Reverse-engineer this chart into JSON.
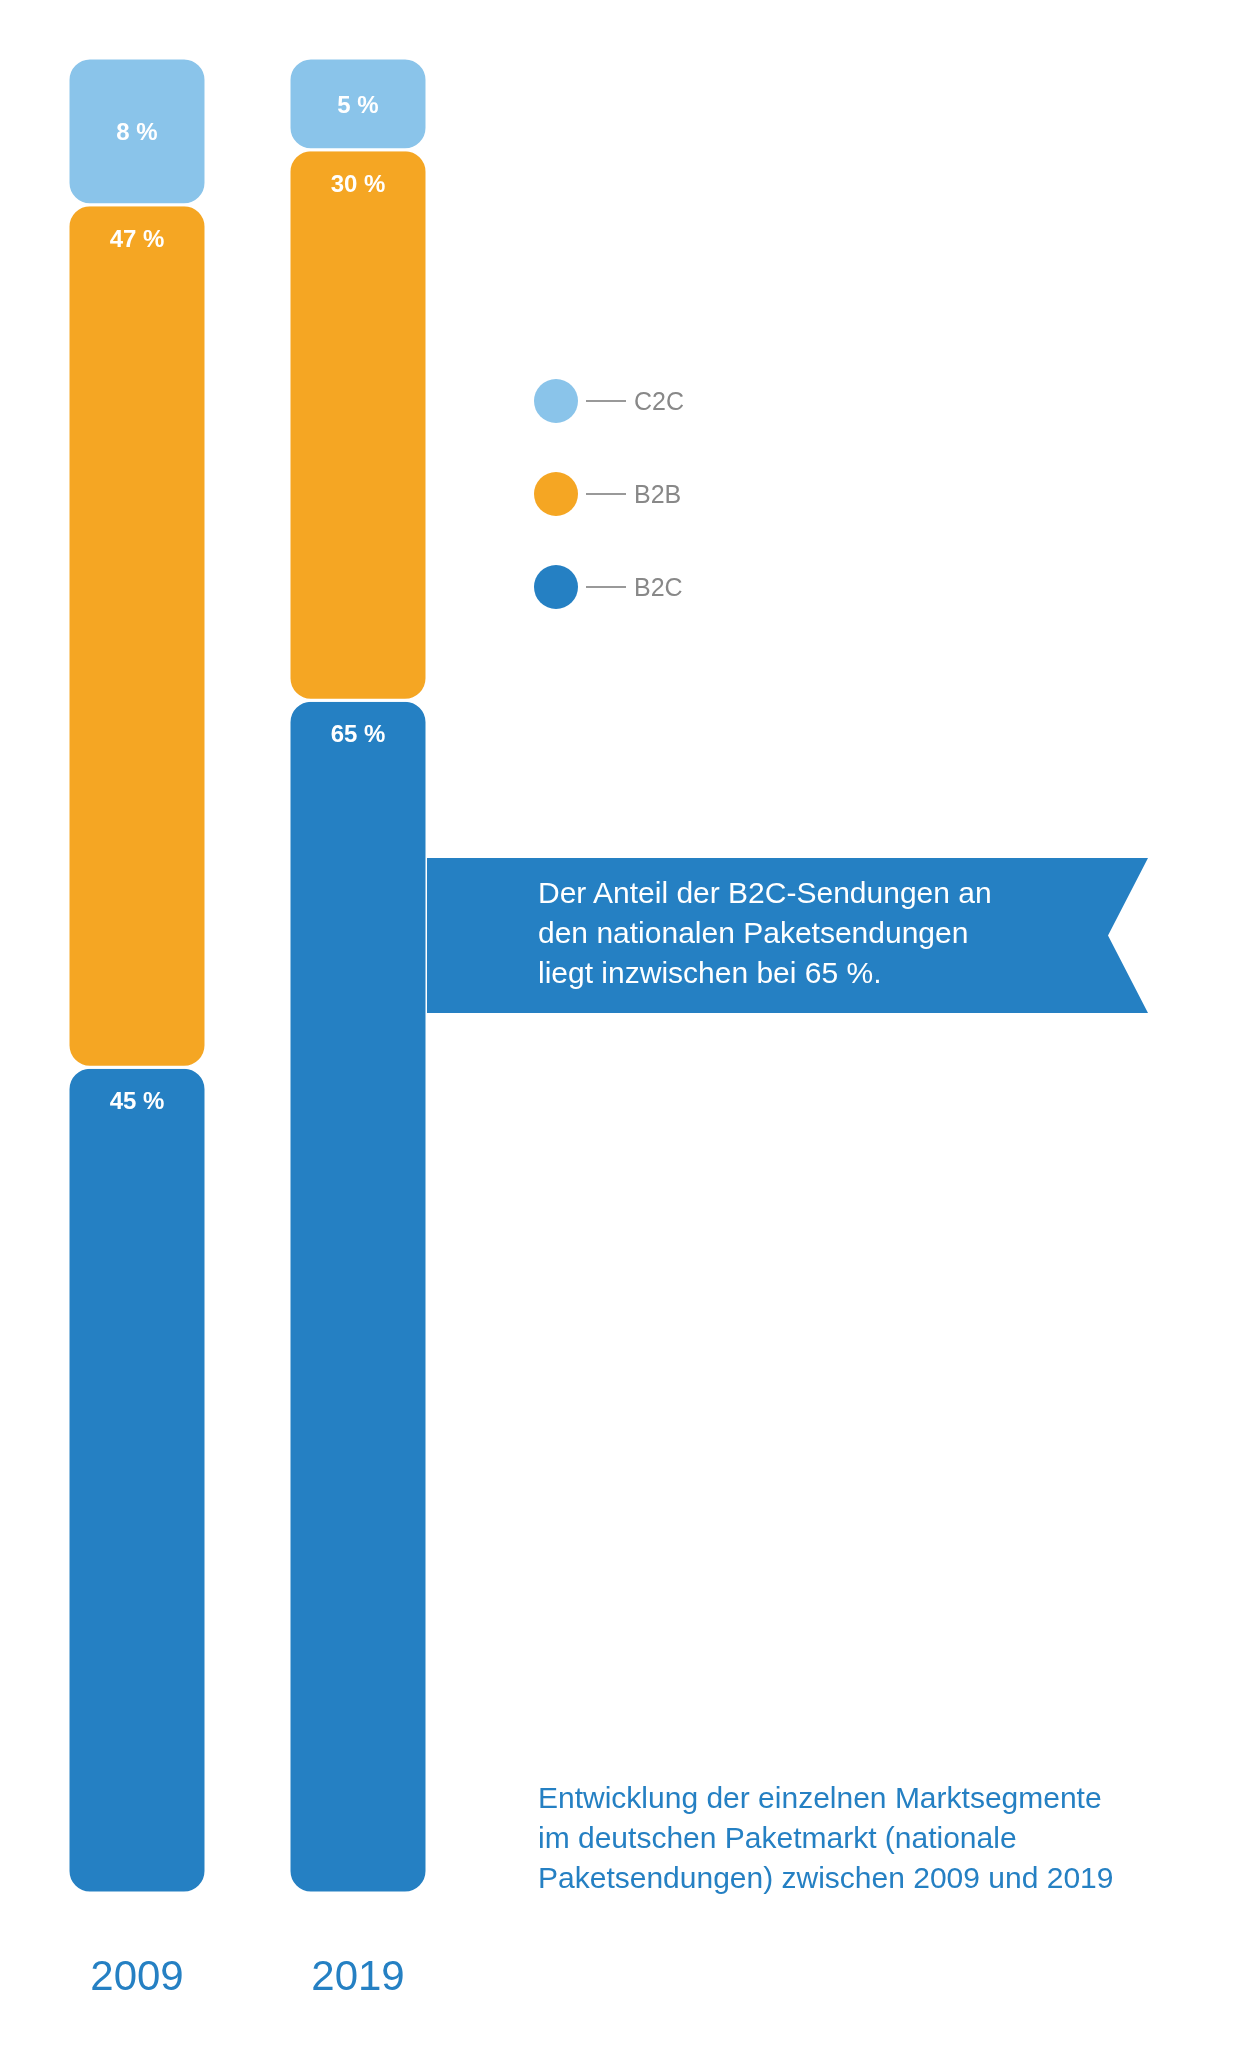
{
  "chart_data": {
    "type": "bar",
    "stacked": true,
    "categories": [
      "2009",
      "2019"
    ],
    "series": [
      {
        "name": "B2C",
        "color": "#2580c3",
        "values": [
          45,
          65
        ],
        "value_labels": [
          "45 %",
          "65 %"
        ]
      },
      {
        "name": "B2B",
        "color": "#f5a623",
        "values": [
          47,
          30
        ],
        "value_labels": [
          "47 %",
          "30 %"
        ]
      },
      {
        "name": "C2C",
        "color": "#8ac4ea",
        "values": [
          8,
          5
        ],
        "value_labels": [
          "8 %",
          "5 %"
        ]
      }
    ],
    "ylim": [
      0,
      100
    ],
    "tick_labels": "x",
    "legend": "right",
    "annotations": [
      "Der Anteil der B2C-Sendungen an den nationalen Paketsendungen liegt inzwischen bei 65 %.",
      "Entwicklung der einzelnen Marktsegmente im deutschen Paketmarkt (nationale Paketsendungen) zwischen 2009 und 2019"
    ]
  }
}
